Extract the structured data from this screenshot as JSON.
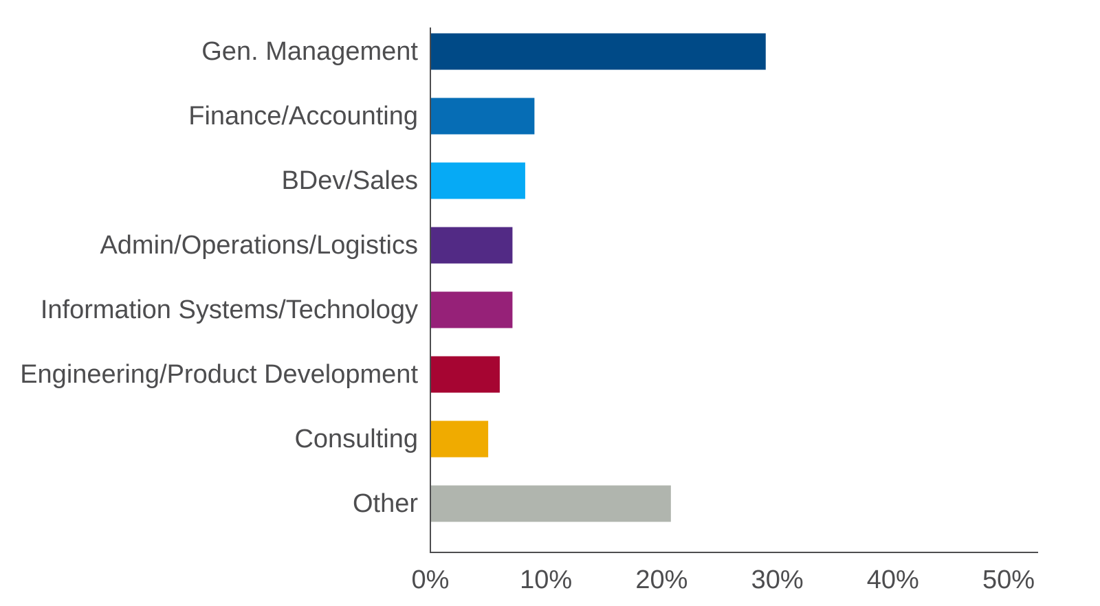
{
  "chart_data": {
    "type": "bar",
    "orientation": "horizontal",
    "title": "",
    "xlabel": "",
    "ylabel": "",
    "xlim": [
      0,
      50
    ],
    "xticks": [
      0,
      10,
      20,
      30,
      40,
      50
    ],
    "xtick_labels": [
      "0%",
      "10%",
      "20%",
      "30%",
      "40%",
      "50%"
    ],
    "grid": false,
    "categories": [
      "Gen. Management",
      "Finance/Accounting",
      "BDev/Sales",
      "Admin/Operations/Logistics",
      "Information Systems/Technology",
      "Engineering/Product Development",
      "Consulting",
      "Other"
    ],
    "values": [
      29,
      9,
      8.2,
      7.1,
      7.1,
      6,
      5,
      20.8
    ],
    "colors": [
      "#004a87",
      "#066db5",
      "#06aaf5",
      "#522a85",
      "#962178",
      "#a60532",
      "#f0ab00",
      "#b0b5ae"
    ]
  }
}
